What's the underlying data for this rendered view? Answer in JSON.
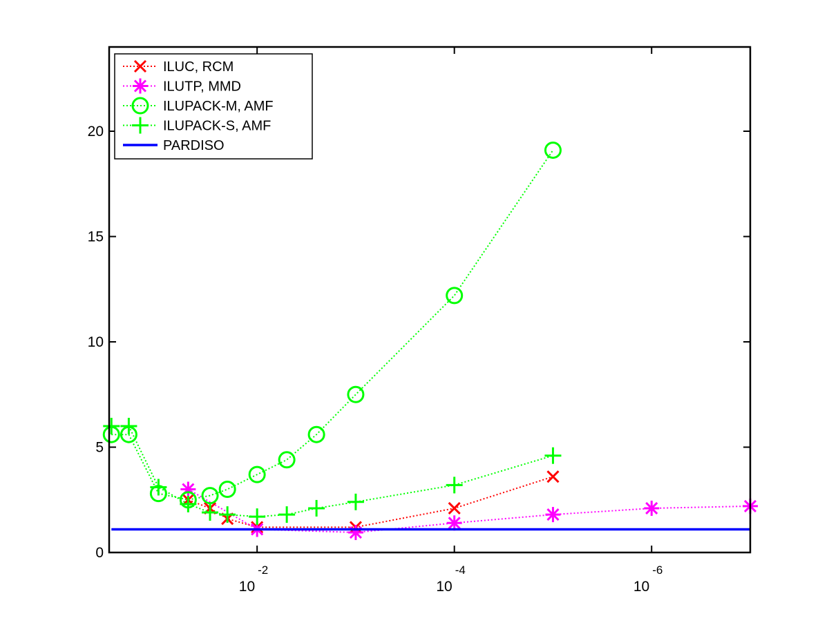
{
  "chart_data": {
    "type": "line",
    "title": "",
    "xlabel": "",
    "ylabel": "",
    "x_scale": "log",
    "x_direction": "decreasing",
    "xlim": [
      0.31623,
      1e-07
    ],
    "ylim": [
      0,
      24
    ],
    "grid": false,
    "legend_position": "top-left",
    "x_ticks": [
      {
        "value": 0.01,
        "base": "10",
        "exponent": "-2"
      },
      {
        "value": 0.0001,
        "base": "10",
        "exponent": "-4"
      },
      {
        "value": 1e-06,
        "base": "10",
        "exponent": "-6"
      }
    ],
    "y_ticks": [
      {
        "value": 0,
        "label": "0"
      },
      {
        "value": 5,
        "label": "5"
      },
      {
        "value": 10,
        "label": "10"
      },
      {
        "value": 15,
        "label": "15"
      },
      {
        "value": 20,
        "label": "20"
      }
    ],
    "series": [
      {
        "name": "ILUC, RCM",
        "color": "#ff0000",
        "marker": "x",
        "line_style": "dotted",
        "x": [
          0.05,
          0.03,
          0.02,
          0.01,
          0.001,
          0.0001,
          1e-05
        ],
        "y": [
          2.5,
          2.1,
          1.6,
          1.2,
          1.2,
          2.1,
          3.6
        ]
      },
      {
        "name": "ILUTP, MMD",
        "color": "#ff00ff",
        "marker": "star",
        "line_style": "dotted",
        "x": [
          0.05,
          0.01,
          0.001,
          0.0001,
          1e-05,
          1e-06,
          1e-07
        ],
        "y": [
          3.0,
          1.1,
          0.95,
          1.4,
          1.8,
          2.1,
          2.2
        ]
      },
      {
        "name": "ILUPACK-M, AMF",
        "color": "#00ff00",
        "marker": "circle",
        "line_style": "dotted",
        "x": [
          0.3,
          0.2,
          0.1,
          0.05,
          0.03,
          0.02,
          0.01,
          0.005,
          0.0025,
          0.001,
          0.0001,
          1e-05
        ],
        "y": [
          5.6,
          5.6,
          2.8,
          2.5,
          2.7,
          3.0,
          3.7,
          4.4,
          5.6,
          7.5,
          12.2,
          19.1
        ]
      },
      {
        "name": "ILUPACK-S, AMF",
        "color": "#00ff00",
        "marker": "plus",
        "line_style": "dotted",
        "x": [
          0.3,
          0.2,
          0.1,
          0.05,
          0.03,
          0.02,
          0.01,
          0.005,
          0.0025,
          0.001,
          0.0001,
          1e-05
        ],
        "y": [
          6.0,
          6.0,
          3.1,
          2.3,
          1.9,
          1.8,
          1.7,
          1.8,
          2.1,
          2.4,
          3.2,
          4.6
        ]
      },
      {
        "name": "PARDISO",
        "color": "#0000ff",
        "marker": "none",
        "line_style": "solid",
        "x": [
          0.3,
          1e-07
        ],
        "y": [
          1.1,
          1.1
        ]
      }
    ]
  }
}
